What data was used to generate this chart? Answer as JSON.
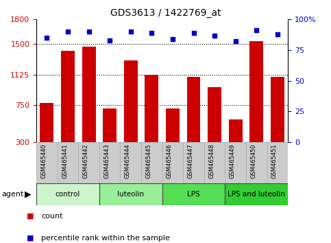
{
  "title": "GDS3613 / 1422769_at",
  "categories": [
    "GSM465440",
    "GSM465441",
    "GSM465442",
    "GSM465443",
    "GSM465444",
    "GSM465445",
    "GSM465446",
    "GSM465447",
    "GSM465448",
    "GSM465449",
    "GSM465450",
    "GSM465451"
  ],
  "bar_values": [
    780,
    1420,
    1470,
    710,
    1300,
    1125,
    710,
    1100,
    970,
    580,
    1530,
    1100
  ],
  "percentile_values": [
    85,
    90,
    90,
    83,
    90,
    89,
    84,
    89,
    87,
    82,
    91,
    88
  ],
  "bar_color": "#cc0000",
  "dot_color": "#0000cc",
  "ylim_left": [
    300,
    1800
  ],
  "ylim_right": [
    0,
    100
  ],
  "yticks_left": [
    300,
    750,
    1125,
    1500,
    1800
  ],
  "yticks_right": [
    0,
    25,
    50,
    75,
    100
  ],
  "ytick_right_labels": [
    "0",
    "25",
    "50",
    "75",
    "100%"
  ],
  "hlines": [
    750,
    1125,
    1500
  ],
  "groups": [
    {
      "label": "control",
      "start": 0,
      "end": 3,
      "color": "#ccf5cc"
    },
    {
      "label": "luteolin",
      "start": 3,
      "end": 6,
      "color": "#99ee99"
    },
    {
      "label": "LPS",
      "start": 6,
      "end": 9,
      "color": "#55dd55"
    },
    {
      "label": "LPS and luteolin",
      "start": 9,
      "end": 12,
      "color": "#33cc33"
    }
  ],
  "bar_color_red": "#cc0000",
  "dot_color_blue": "#0000cc",
  "xtick_bg_color": "#cccccc",
  "xtick_edge_color": "#aaaaaa",
  "agent_label": "agent",
  "legend_count_label": "count",
  "legend_pct_label": "percentile rank within the sample"
}
